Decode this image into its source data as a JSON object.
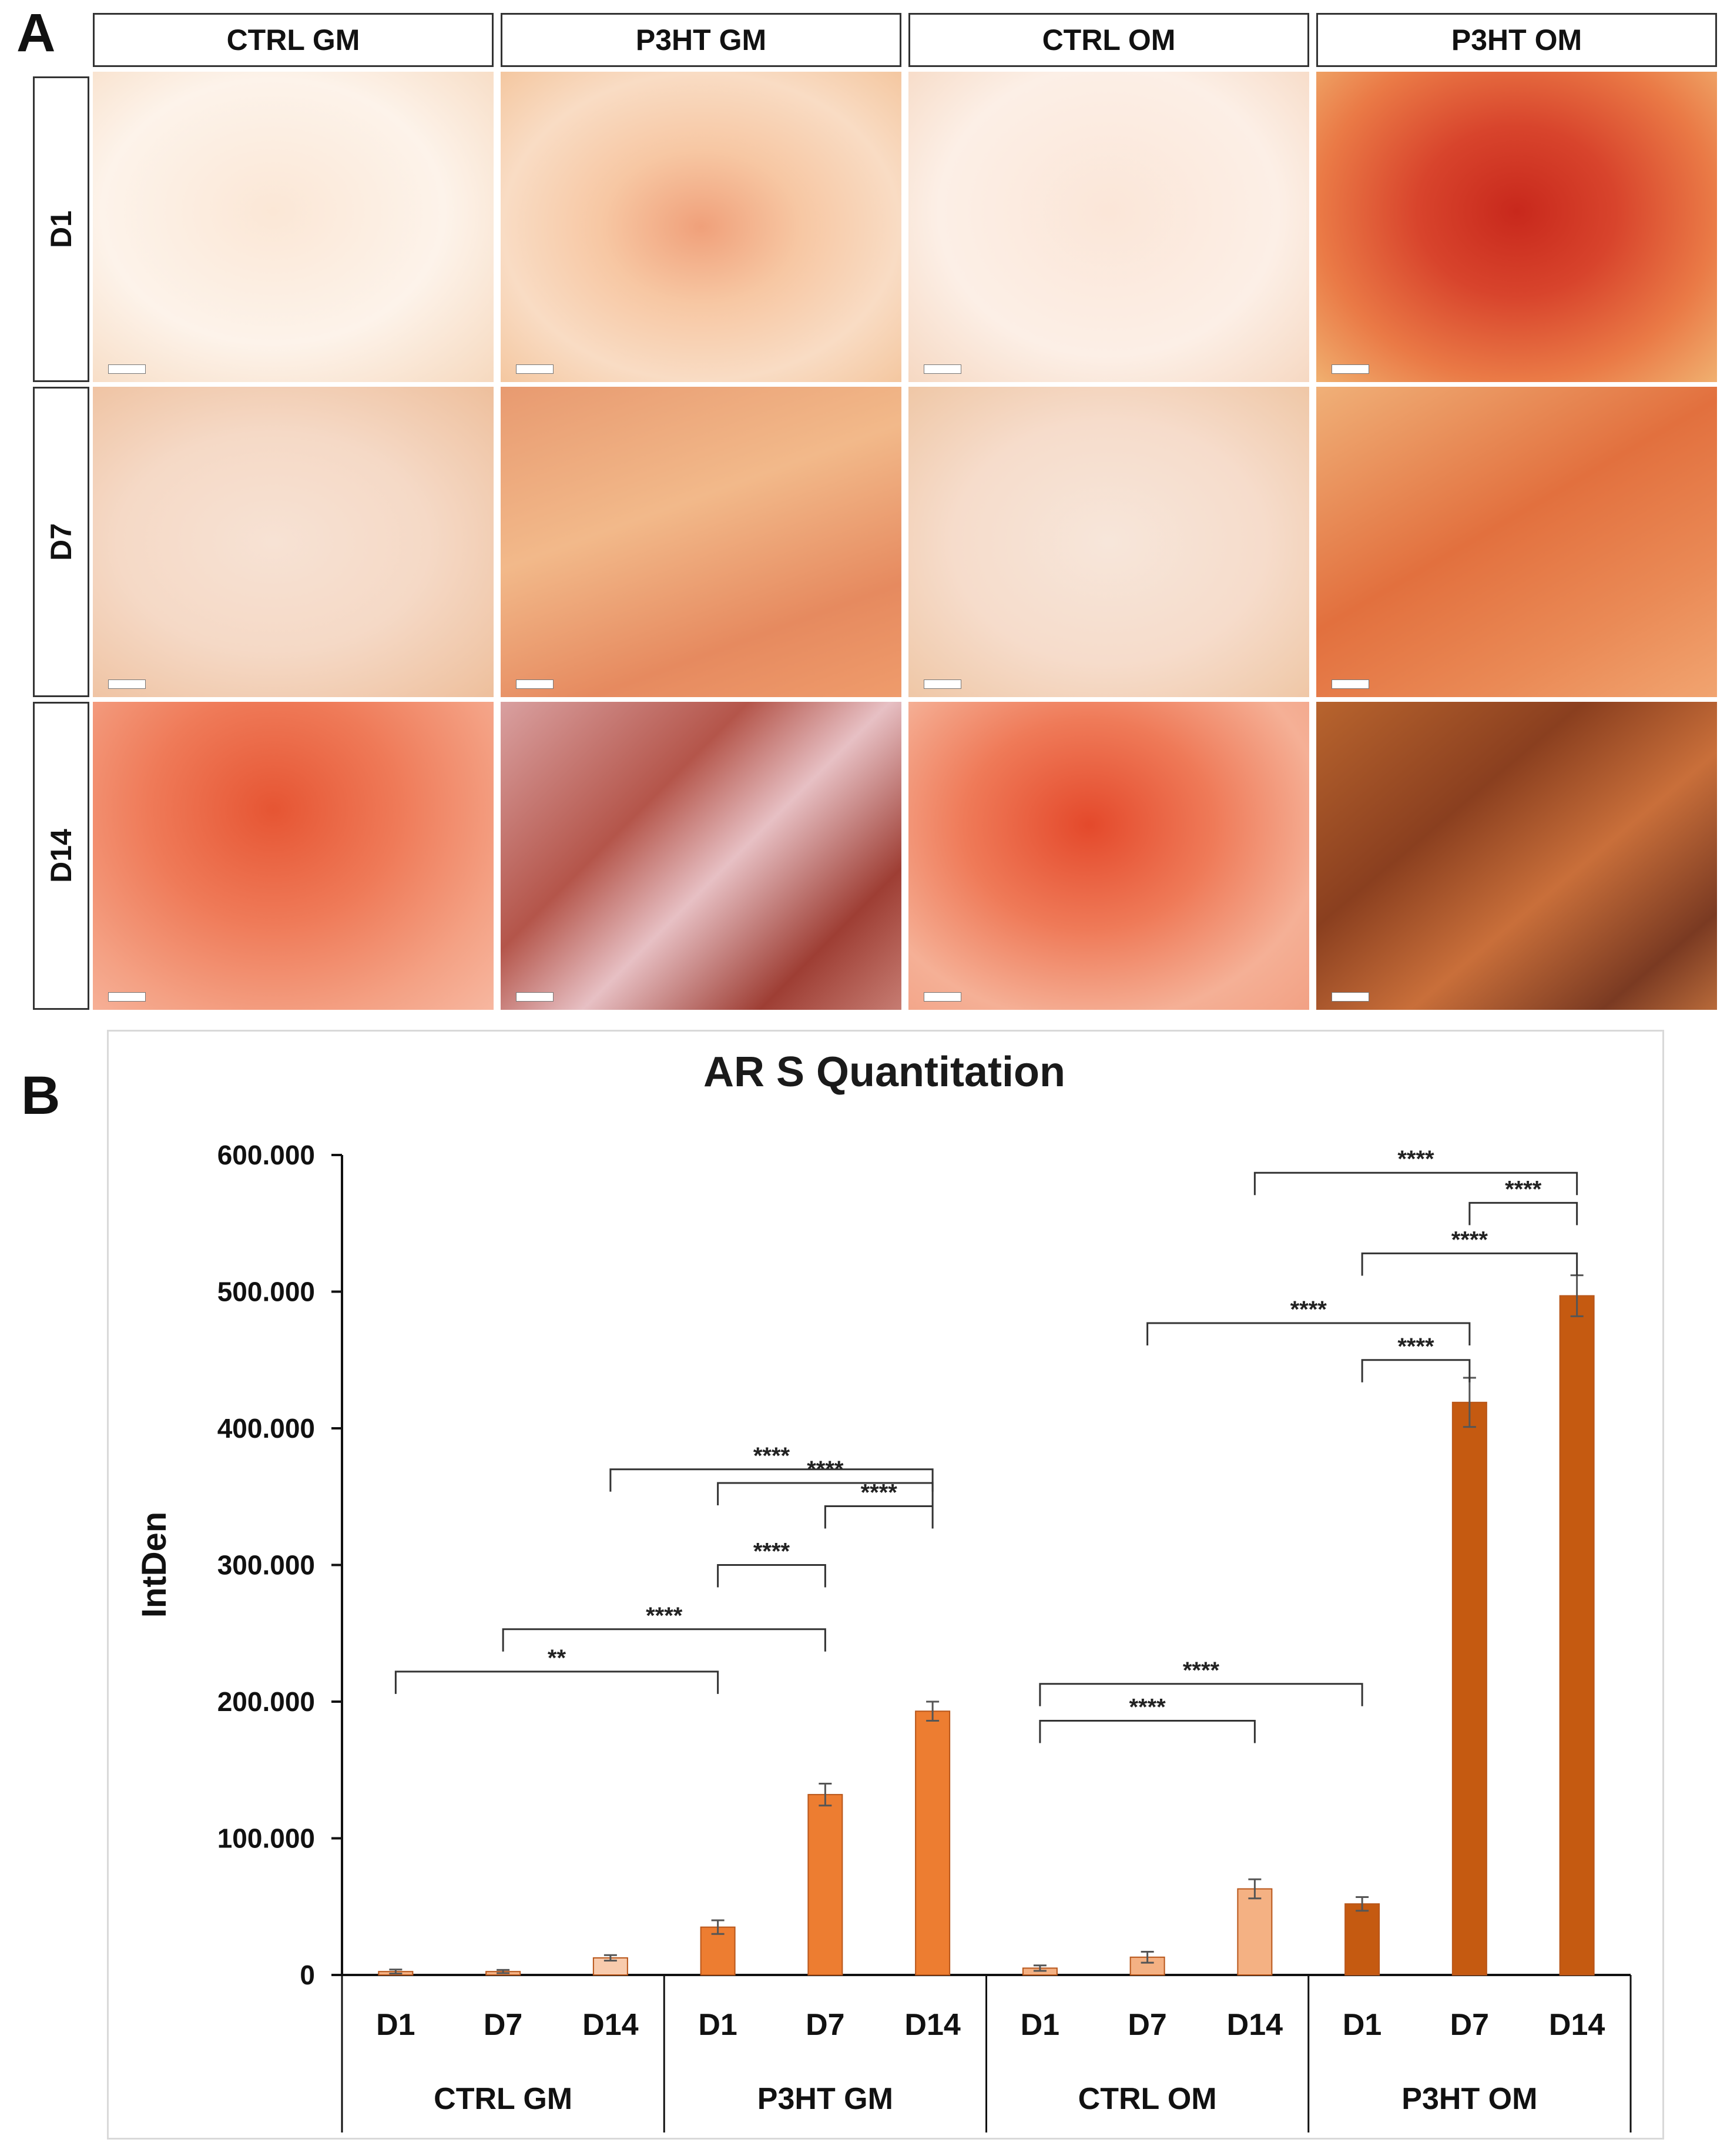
{
  "panel_a": {
    "label": "A",
    "columns": [
      "CTRL GM",
      "P3HT GM",
      "CTRL OM",
      "P3HT OM"
    ],
    "rows": [
      "D1",
      "D7",
      "D14"
    ]
  },
  "panel_b": {
    "label": "B"
  },
  "chart_data": {
    "type": "bar",
    "title": "AR S Quantitation",
    "ylabel": "IntDen",
    "xlabel": "",
    "ylim": [
      0,
      600000
    ],
    "yticks": [
      0,
      100000,
      200000,
      300000,
      400000,
      500000,
      600000
    ],
    "ytick_labels": [
      "0",
      "100.000",
      "200.000",
      "300.000",
      "400.000",
      "500.000",
      "600.000"
    ],
    "groups": [
      "CTRL GM",
      "P3HT GM",
      "CTRL OM",
      "P3HT OM"
    ],
    "categories": [
      "D1",
      "D7",
      "D14"
    ],
    "series": [
      {
        "name": "CTRL GM",
        "values": [
          2500,
          2500,
          12500
        ],
        "errors": [
          1500,
          1200,
          2000
        ],
        "colors": [
          "#F4B183",
          "#F4B183",
          "#F8CBAD"
        ]
      },
      {
        "name": "P3HT GM",
        "values": [
          35000,
          132000,
          193000
        ],
        "errors": [
          5000,
          8000,
          7000
        ],
        "colors": [
          "#ED7D31",
          "#ED7D31",
          "#ED7D31"
        ]
      },
      {
        "name": "CTRL OM",
        "values": [
          5000,
          13000,
          63000
        ],
        "errors": [
          2000,
          4000,
          7000
        ],
        "colors": [
          "#F4B183",
          "#F4B183",
          "#F4B183"
        ]
      },
      {
        "name": "P3HT OM",
        "values": [
          52000,
          419000,
          497000
        ],
        "errors": [
          5000,
          18000,
          15000
        ],
        "colors": [
          "#C55A11",
          "#C55A11",
          "#C55A11"
        ]
      }
    ],
    "significance": [
      {
        "from": "CTRL GM D1",
        "to": "P3HT GM D1",
        "label": "**",
        "level": 222000
      },
      {
        "from": "P3HT GM D1",
        "to": "P3HT GM D7",
        "label": "****",
        "level": 300000
      },
      {
        "from": "CTRL GM D7",
        "to": "P3HT GM D7",
        "label": "****",
        "level": 253000
      },
      {
        "from": "P3HT GM D7",
        "to": "P3HT GM D14",
        "label": "****",
        "level": 343000
      },
      {
        "from": "P3HT GM D1",
        "to": "P3HT GM D14",
        "label": "****",
        "level": 360000
      },
      {
        "from": "CTRL GM D14",
        "to": "P3HT GM D14",
        "label": "****",
        "level": 370000
      },
      {
        "from": "CTRL OM D1",
        "to": "CTRL OM D14",
        "label": "****",
        "level": 186000
      },
      {
        "from": "CTRL OM D1",
        "to": "P3HT OM D1",
        "label": "****",
        "level": 213000
      },
      {
        "from": "P3HT OM D1",
        "to": "P3HT OM D7",
        "label": "****",
        "level": 450000
      },
      {
        "from": "CTRL OM D7",
        "to": "P3HT OM D7",
        "label": "****",
        "level": 477000
      },
      {
        "from": "P3HT OM D1",
        "to": "P3HT OM D14",
        "label": "****",
        "level": 528000
      },
      {
        "from": "P3HT OM D7",
        "to": "P3HT OM D14",
        "label": "****",
        "level": 565000
      },
      {
        "from": "CTRL OM D14",
        "to": "P3HT OM D14",
        "label": "****",
        "level": 587000
      }
    ]
  }
}
